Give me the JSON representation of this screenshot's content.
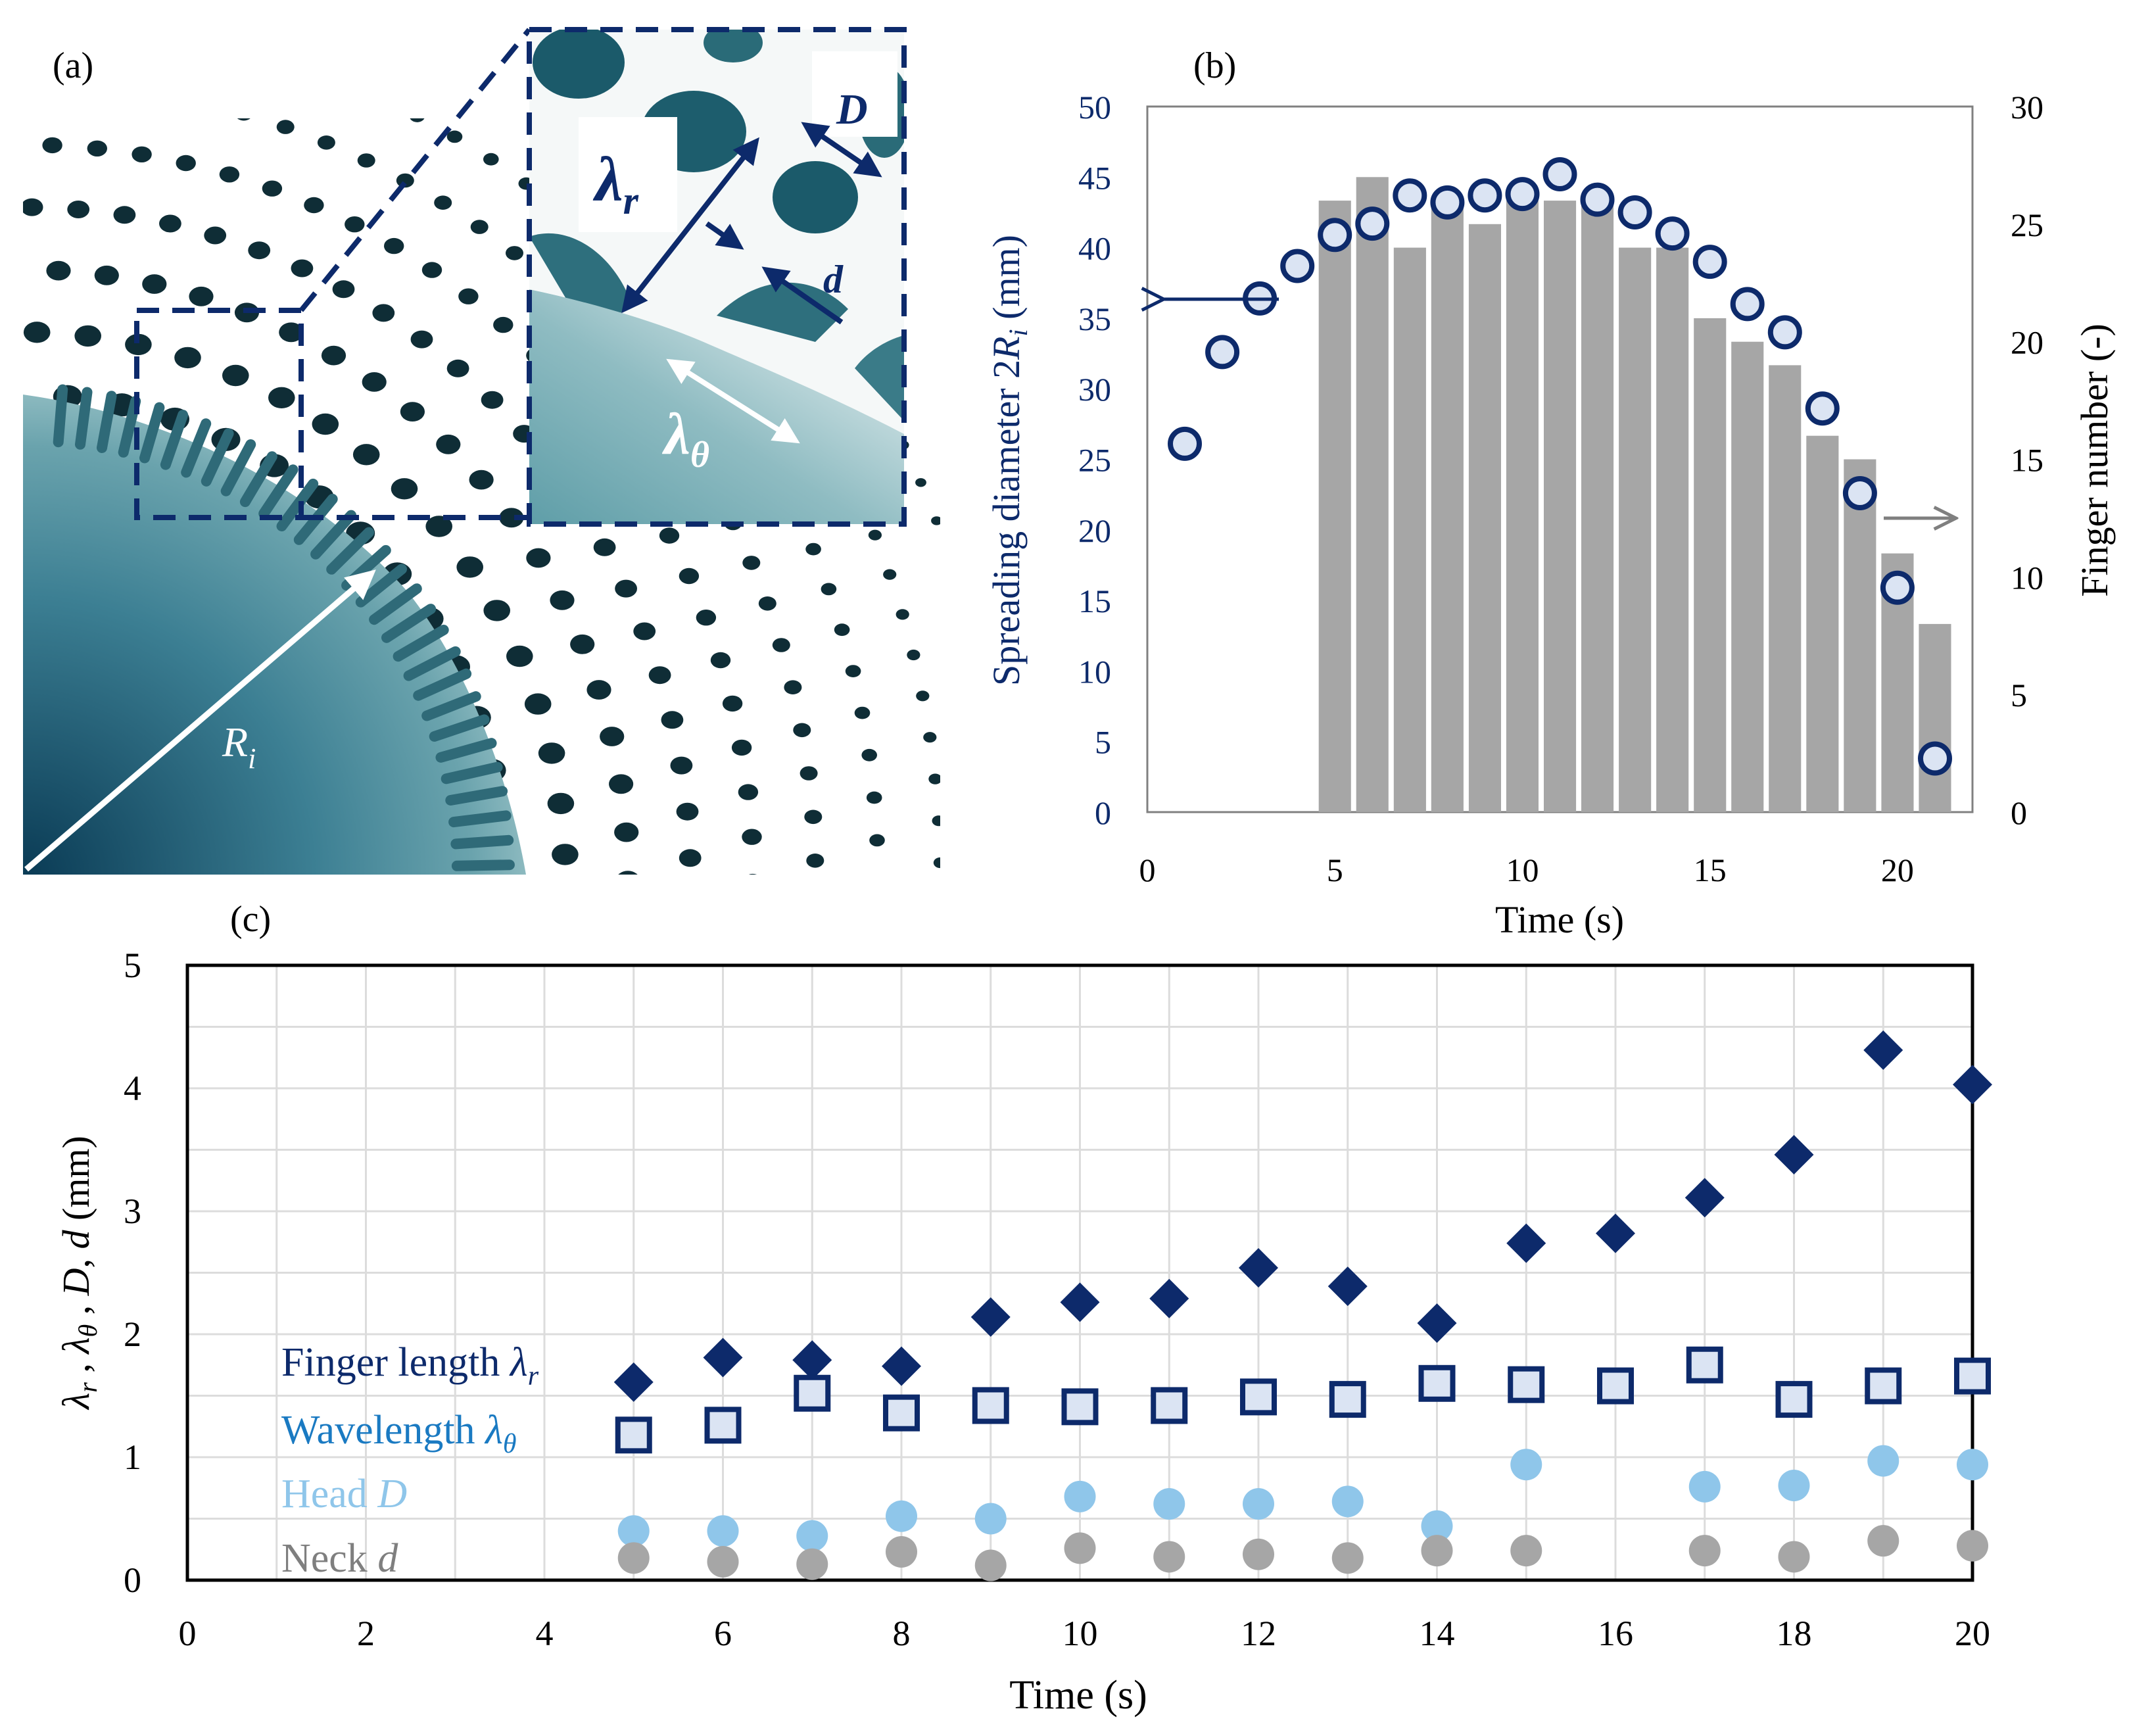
{
  "panel_labels": {
    "a": "(a)",
    "b": "(b)",
    "c": "(c)"
  },
  "photo_labels": {
    "radius": "R",
    "radius_sub": "i",
    "finger_length": "λ",
    "finger_length_sub": "r",
    "wavelength": "λ",
    "wavelength_sub": "θ",
    "head": "D",
    "neck": "d"
  },
  "colors": {
    "navy": "#0d2a6b",
    "bar_gray": "#a6a6a6",
    "circle_fill": "#dbe4f3",
    "square_fill": "#dbe4f3",
    "light_blue": "#8fc6ea",
    "neck_gray": "#a6a6a6",
    "legend_blue": "#1a7ac2",
    "legend_light": "#8fc6ea",
    "legend_gray": "#7f7f7f",
    "arrow_gray": "#7f7f7f"
  },
  "chart_data": [
    {
      "id": "b",
      "type": "bar+scatter",
      "xlabel": "Time (s)",
      "ylabel_left": "Spreading  diameter  2",
      "ylabel_left_var": "R",
      "ylabel_left_sub": "i",
      "ylabel_left_unit": " (mm)",
      "ylabel_right": "Finger  number  (-)",
      "xlim": [
        0,
        22
      ],
      "ylim_left": [
        0,
        50
      ],
      "ylim_right": [
        0,
        30
      ],
      "xticks": [
        "0",
        "5",
        "10",
        "15",
        "20"
      ],
      "yticks_left": [
        "0",
        "5",
        "10",
        "15",
        "20",
        "25",
        "30",
        "35",
        "40",
        "45",
        "50"
      ],
      "yticks_right": [
        "0",
        "5",
        "10",
        "15",
        "20",
        "25",
        "30"
      ],
      "series": [
        {
          "name": "Finger number",
          "axis": "right",
          "type": "bar",
          "x": [
            5,
            6,
            7,
            8,
            9,
            10,
            11,
            12,
            13,
            14,
            15,
            16,
            17,
            18,
            19,
            20,
            21
          ],
          "values": [
            26,
            27,
            24,
            26,
            25,
            26,
            26,
            26,
            24,
            24,
            21,
            20,
            19,
            16,
            15,
            11,
            8
          ]
        },
        {
          "name": "Spreading diameter",
          "axis": "left",
          "type": "scatter",
          "x": [
            1,
            2,
            3,
            4,
            5,
            6,
            7,
            8,
            9,
            10,
            11,
            12,
            13,
            14,
            15,
            16,
            17,
            18,
            19,
            20,
            21
          ],
          "values": [
            26.1,
            32.6,
            36.4,
            38.7,
            40.9,
            41.7,
            43.7,
            43.2,
            43.7,
            43.8,
            45.2,
            43.4,
            42.5,
            41.0,
            39.0,
            36.0,
            34.0,
            28.6,
            22.6,
            15.9,
            3.8
          ]
        }
      ]
    },
    {
      "id": "c",
      "type": "scatter",
      "xlabel": "Time (s)",
      "ylabel": "λr , λθ , D, d (mm)",
      "xlim": [
        0,
        20
      ],
      "ylim": [
        0,
        5
      ],
      "xticks": [
        "0",
        "2",
        "4",
        "6",
        "8",
        "10",
        "12",
        "14",
        "16",
        "18",
        "20"
      ],
      "yticks": [
        "0",
        "1",
        "2",
        "3",
        "4",
        "5"
      ],
      "grid": true,
      "legend": [
        {
          "text": "Finger length ",
          "sym": "λ",
          "sub": "r"
        },
        {
          "text": "Wavelength ",
          "sym": "λ",
          "sub": "θ"
        },
        {
          "text": "Head ",
          "sym": "D",
          "sub": ""
        },
        {
          "text": "Neck ",
          "sym": "d",
          "sub": ""
        }
      ],
      "series": [
        {
          "name": "Finger length λr",
          "marker": "diamond",
          "x": [
            5,
            6,
            7,
            8,
            9,
            10,
            11,
            12,
            13,
            14,
            15,
            16,
            17,
            18,
            19,
            20
          ],
          "values": [
            1.61,
            1.81,
            1.79,
            1.74,
            2.14,
            2.26,
            2.29,
            2.54,
            2.39,
            2.09,
            2.74,
            2.82,
            3.11,
            3.46,
            4.31,
            4.03
          ]
        },
        {
          "name": "Wavelength λθ",
          "marker": "square",
          "x": [
            5,
            6,
            7,
            8,
            9,
            10,
            11,
            12,
            13,
            14,
            15,
            16,
            17,
            18,
            19,
            20
          ],
          "values": [
            1.18,
            1.26,
            1.52,
            1.36,
            1.42,
            1.41,
            1.42,
            1.49,
            1.47,
            1.6,
            1.59,
            1.58,
            1.75,
            1.47,
            1.58,
            1.66
          ]
        },
        {
          "name": "Head D",
          "marker": "circle",
          "x": [
            5,
            6,
            7,
            8,
            9,
            10,
            11,
            12,
            13,
            14,
            15,
            17,
            18,
            19,
            20
          ],
          "values": [
            0.4,
            0.4,
            0.36,
            0.52,
            0.5,
            0.68,
            0.62,
            0.62,
            0.64,
            0.44,
            0.94,
            0.76,
            0.77,
            0.97,
            0.94
          ]
        },
        {
          "name": "Neck d",
          "marker": "circle",
          "x": [
            5,
            6,
            7,
            8,
            9,
            10,
            11,
            12,
            13,
            14,
            15,
            17,
            18,
            19,
            20
          ],
          "values": [
            0.18,
            0.15,
            0.13,
            0.23,
            0.12,
            0.26,
            0.19,
            0.21,
            0.18,
            0.24,
            0.24,
            0.24,
            0.19,
            0.32,
            0.28
          ]
        }
      ]
    }
  ]
}
